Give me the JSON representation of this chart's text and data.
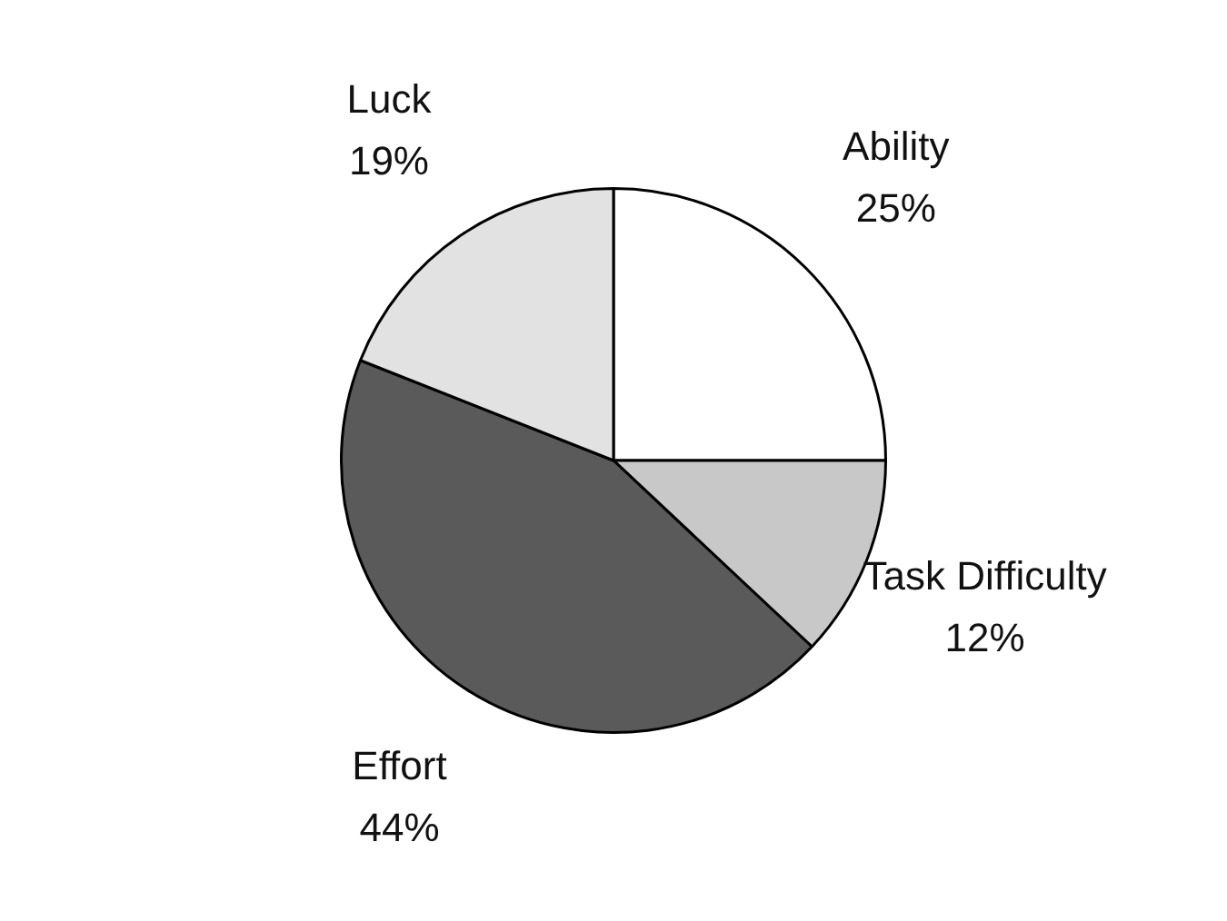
{
  "chart_data": {
    "type": "pie",
    "categories": [
      "Ability",
      "Task Difficulty",
      "Effort",
      "Luck"
    ],
    "values": [
      25,
      12,
      44,
      19
    ],
    "colors": [
      "#ffffff",
      "#c8c8c8",
      "#5a5a5a",
      "#e2e2e2"
    ],
    "value_labels": [
      "25%",
      "12%",
      "44%",
      "19%"
    ],
    "legend": false
  }
}
